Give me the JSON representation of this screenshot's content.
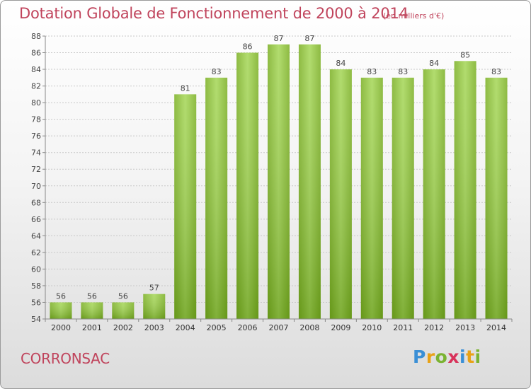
{
  "chart_data": {
    "type": "bar",
    "title": "Dotation Globale de Fonctionnement de 2000 à 2014",
    "subtitle": "(en milliers d'€)",
    "categories": [
      "2000",
      "2001",
      "2002",
      "2003",
      "2004",
      "2005",
      "2006",
      "2007",
      "2008",
      "2009",
      "2010",
      "2011",
      "2012",
      "2013",
      "2014"
    ],
    "values": [
      56,
      56,
      56,
      57,
      81,
      83,
      86,
      87,
      87,
      84,
      83,
      83,
      84,
      85,
      83
    ],
    "ylim": [
      54,
      88
    ],
    "yticks": [
      54,
      56,
      58,
      60,
      62,
      64,
      66,
      68,
      70,
      72,
      74,
      76,
      78,
      80,
      82,
      84,
      86,
      88
    ],
    "grid": true,
    "colors": {
      "bar_light": "#9fd24f",
      "bar_dark": "#6a9e18",
      "text": "#c0445c"
    }
  },
  "footer": {
    "commune": "CORRONSAC",
    "logo": "Proxiti"
  }
}
